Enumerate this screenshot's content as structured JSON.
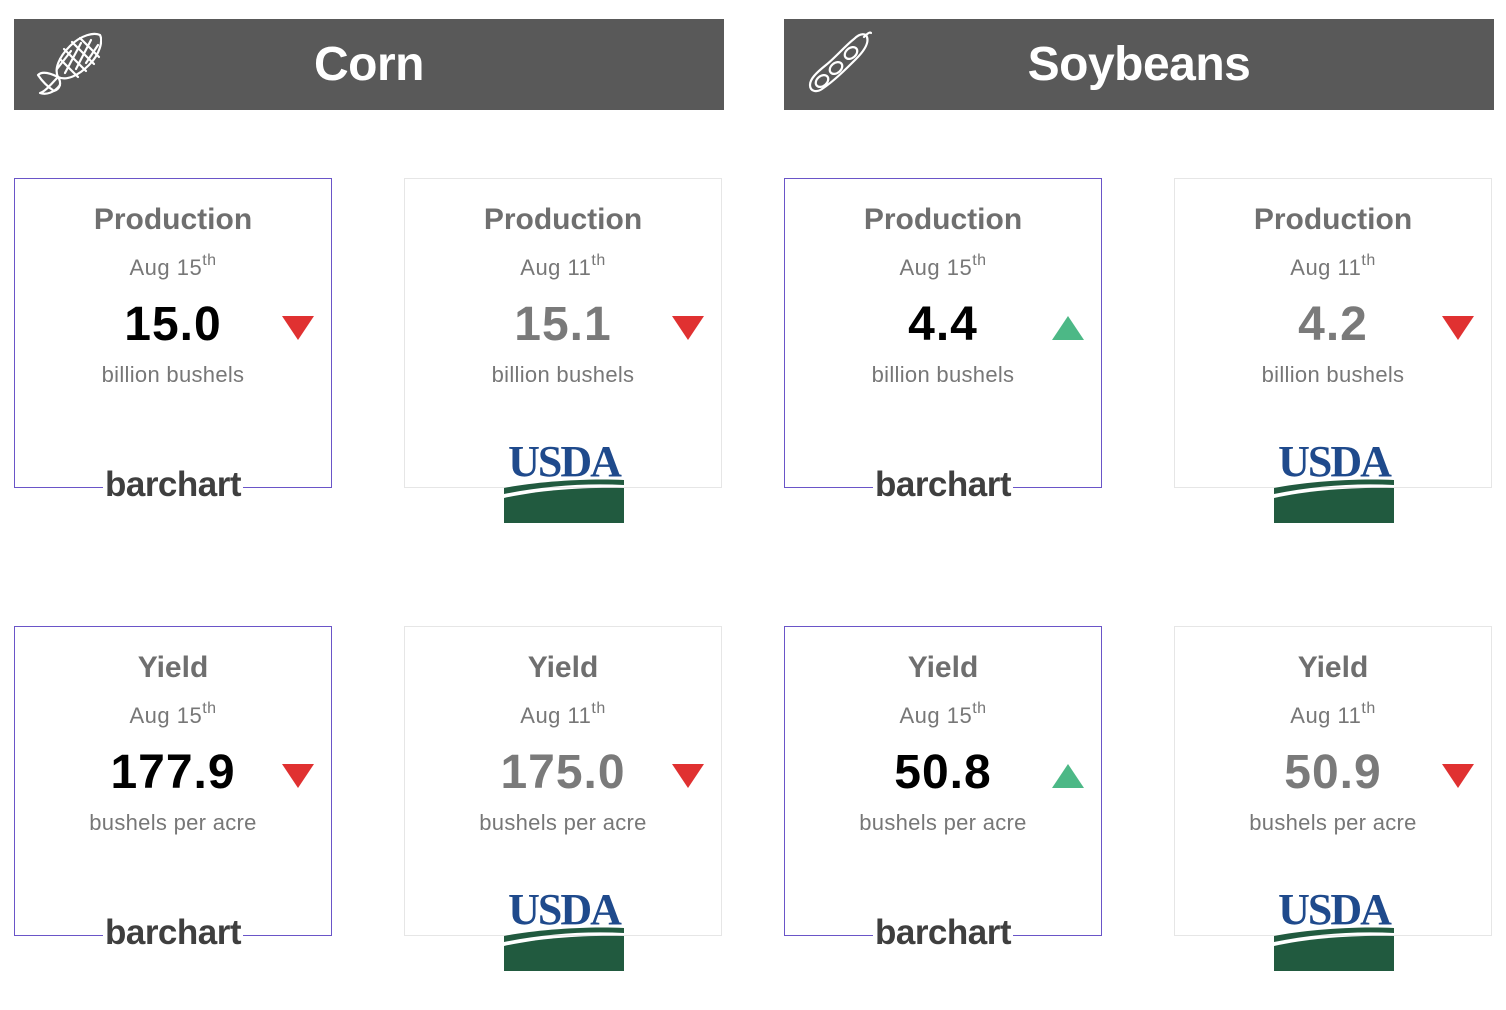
{
  "crops": [
    {
      "name": "Corn",
      "icon": "corn-cob-icon",
      "cards": [
        {
          "metric": "Production",
          "date": "Aug 15",
          "date_suffix": "th",
          "value": "15.0",
          "unit": "billion bushels",
          "trend": "down",
          "source": "barchart"
        },
        {
          "metric": "Production",
          "date": "Aug 11",
          "date_suffix": "th",
          "value": "15.1",
          "unit": "billion bushels",
          "trend": "down",
          "source": "USDA"
        },
        {
          "metric": "Yield",
          "date": "Aug 15",
          "date_suffix": "th",
          "value": "177.9",
          "unit": "bushels per acre",
          "trend": "down",
          "source": "barchart"
        },
        {
          "metric": "Yield",
          "date": "Aug 11",
          "date_suffix": "th",
          "value": "175.0",
          "unit": "bushels per acre",
          "trend": "down",
          "source": "USDA"
        }
      ]
    },
    {
      "name": "Soybeans",
      "icon": "soybean-pod-icon",
      "cards": [
        {
          "metric": "Production",
          "date": "Aug 15",
          "date_suffix": "th",
          "value": "4.4",
          "unit": "billion bushels",
          "trend": "up",
          "source": "barchart"
        },
        {
          "metric": "Production",
          "date": "Aug 11",
          "date_suffix": "th",
          "value": "4.2",
          "unit": "billion bushels",
          "trend": "down",
          "source": "USDA"
        },
        {
          "metric": "Yield",
          "date": "Aug 15",
          "date_suffix": "th",
          "value": "50.8",
          "unit": "bushels per acre",
          "trend": "up",
          "source": "barchart"
        },
        {
          "metric": "Yield",
          "date": "Aug 11",
          "date_suffix": "th",
          "value": "50.9",
          "unit": "bushels per acre",
          "trend": "down",
          "source": "USDA"
        }
      ]
    }
  ],
  "brands": {
    "barchart": "barchart",
    "usda": "USDA"
  },
  "colors": {
    "header_bg": "#595959",
    "trend_up": "#4cb886",
    "trend_down": "#e03131",
    "barchart_border": "#6a55c8",
    "usda_border": "#e6e6e6",
    "usda_blue": "#1f4a8c",
    "usda_green": "#215a3f"
  }
}
